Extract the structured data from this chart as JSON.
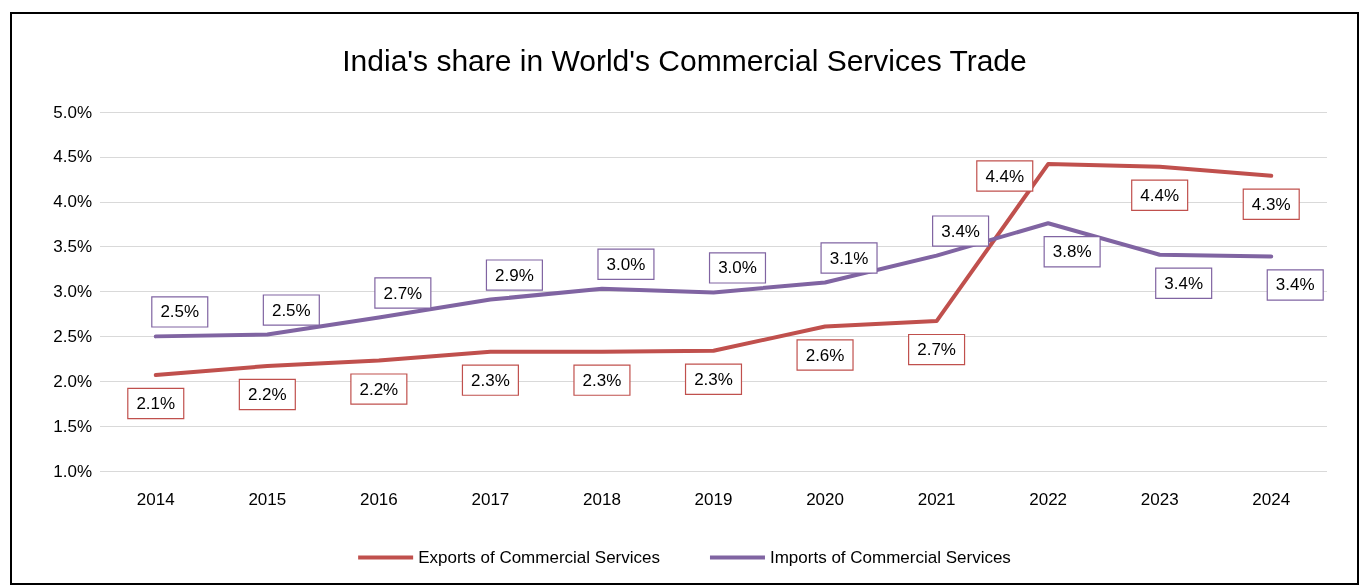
{
  "chart_data": {
    "type": "line",
    "title": "India's share in World's Commercial Services Trade",
    "categories": [
      "2014",
      "2015",
      "2016",
      "2017",
      "2018",
      "2019",
      "2020",
      "2021",
      "2022",
      "2023",
      "2024"
    ],
    "series": [
      {
        "name": "Exports of Commercial Services",
        "color": "#c0504d",
        "values": [
          2.07,
          2.17,
          2.23,
          2.33,
          2.33,
          2.34,
          2.61,
          2.67,
          4.42,
          4.39,
          4.29
        ],
        "value_labels": [
          "2.1%",
          "2.2%",
          "2.2%",
          "2.3%",
          "2.3%",
          "2.3%",
          "2.6%",
          "2.7%",
          "4.4%",
          "4.4%",
          "4.3%"
        ]
      },
      {
        "name": "Imports of Commercial Services",
        "color": "#8064a2",
        "values": [
          2.5,
          2.52,
          2.71,
          2.91,
          3.03,
          2.99,
          3.1,
          3.4,
          3.76,
          3.41,
          3.39
        ],
        "value_labels": [
          "2.5%",
          "2.5%",
          "2.7%",
          "2.9%",
          "3.0%",
          "3.0%",
          "3.1%",
          "3.4%",
          "3.8%",
          "3.4%",
          "3.4%"
        ]
      }
    ],
    "ylim": [
      1,
      5
    ],
    "yticks": [
      {
        "value": 1,
        "label": "1.0%"
      },
      {
        "value": 1.5,
        "label": "1.5%"
      },
      {
        "value": 2,
        "label": "2.0%"
      },
      {
        "value": 2.5,
        "label": "2.5%"
      },
      {
        "value": 3,
        "label": "3.0%"
      },
      {
        "value": 3.5,
        "label": "3.5%"
      },
      {
        "value": 4,
        "label": "4.0%"
      },
      {
        "value": 4.5,
        "label": "4.5%"
      },
      {
        "value": 5,
        "label": "5.0%"
      }
    ],
    "grid": "y",
    "legend": "bottom",
    "marker": "none",
    "line_style": "solid"
  }
}
